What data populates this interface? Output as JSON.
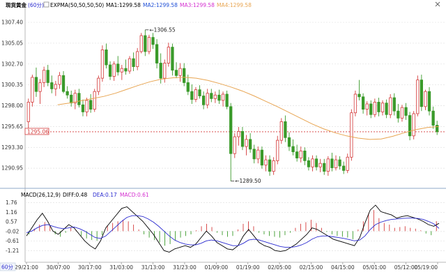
{
  "header": {
    "title": "现货黄金",
    "period": "(60分)",
    "ind_main": "EXPMA(50,50,50,50)",
    "ma1": "MA1:1299.58",
    "ma2": "MA2:1299.58",
    "ma3": "MA3:1299.58",
    "ma4": "MA4:1299.58",
    "colors": {
      "ma1": "#000000",
      "ma2": "#1f4fd6",
      "ma3": "#d42fd0",
      "ma4": "#e8a552"
    }
  },
  "toolbar": {
    "close_icon": "close-icon"
  },
  "macd": {
    "label": "MACD(26,12,9)",
    "diff": "DIFF:0.48",
    "dea": "DEA:0.17",
    "macd": "MACD:0.61",
    "colors": {
      "diff": "#000000",
      "dea": "#2a2ad0",
      "macd": "#d42fd0"
    }
  },
  "footer": {
    "period_button": "60分"
  },
  "current_price": "1295.06",
  "chart_data": [
    {
      "type": "candlestick",
      "title": "",
      "yticks": [
        "1307.40",
        "1305.05",
        "1302.70",
        "1300.35",
        "1298.00",
        "1295.65",
        "1293.30",
        "1290.95"
      ],
      "ylim": [
        1289.0,
        1308.5
      ],
      "xticks": [
        "29/21:00",
        "30/07:00",
        "30/17:00",
        "31/03:00",
        "31/13:00",
        "31/23:00",
        "01/09:00",
        "01/19:00",
        "02/05:00",
        "02/15:00",
        "04/15:00",
        "05/01:00",
        "05/12:00",
        "05/19:00"
      ],
      "annotations": [
        {
          "text": "1306.55"
        },
        {
          "text": "1289.50"
        }
      ],
      "up_color": "#d43a3a",
      "down_color": "#3a9a2a",
      "expma_color": "#e8a552",
      "ohlc": [
        [
          1296.2,
          1298.8,
          1295.0,
          1298.4
        ],
        [
          1298.4,
          1301.5,
          1297.9,
          1301.2
        ],
        [
          1301.2,
          1302.3,
          1299.0,
          1299.6
        ],
        [
          1299.6,
          1301.0,
          1298.2,
          1300.6
        ],
        [
          1300.6,
          1302.4,
          1300.1,
          1302.0
        ],
        [
          1302.0,
          1302.6,
          1300.2,
          1300.6
        ],
        [
          1300.6,
          1301.4,
          1299.4,
          1299.9
        ],
        [
          1299.9,
          1300.8,
          1299.1,
          1300.4
        ],
        [
          1300.4,
          1301.8,
          1299.9,
          1301.4
        ],
        [
          1301.4,
          1301.9,
          1299.4,
          1299.6
        ],
        [
          1299.6,
          1300.2,
          1298.8,
          1299.2
        ],
        [
          1299.2,
          1299.7,
          1297.9,
          1298.3
        ],
        [
          1298.3,
          1299.8,
          1297.6,
          1299.4
        ],
        [
          1299.4,
          1299.9,
          1297.8,
          1298.1
        ],
        [
          1298.1,
          1298.7,
          1296.8,
          1297.3
        ],
        [
          1297.3,
          1298.9,
          1296.8,
          1298.6
        ],
        [
          1298.6,
          1299.3,
          1297.2,
          1297.6
        ],
        [
          1297.6,
          1299.9,
          1297.3,
          1299.6
        ],
        [
          1299.6,
          1301.4,
          1299.2,
          1301.1
        ],
        [
          1301.1,
          1304.8,
          1300.7,
          1304.3
        ],
        [
          1304.3,
          1305.0,
          1302.2,
          1302.6
        ],
        [
          1302.6,
          1303.0,
          1300.9,
          1301.3
        ],
        [
          1301.3,
          1303.0,
          1300.8,
          1302.7
        ],
        [
          1302.7,
          1303.6,
          1301.4,
          1301.8
        ],
        [
          1301.8,
          1302.6,
          1300.9,
          1302.2
        ],
        [
          1302.2,
          1303.2,
          1301.5,
          1301.9
        ],
        [
          1301.9,
          1303.6,
          1301.6,
          1303.3
        ],
        [
          1303.3,
          1304.0,
          1301.9,
          1302.4
        ],
        [
          1302.4,
          1304.5,
          1302.0,
          1304.1
        ],
        [
          1304.1,
          1306.2,
          1303.9,
          1305.9
        ],
        [
          1305.9,
          1306.55,
          1303.6,
          1304.1
        ],
        [
          1304.1,
          1306.0,
          1303.8,
          1305.7
        ],
        [
          1305.7,
          1306.2,
          1304.4,
          1304.9
        ],
        [
          1304.9,
          1305.5,
          1302.2,
          1302.8
        ],
        [
          1302.8,
          1303.9,
          1300.5,
          1301.1
        ],
        [
          1301.1,
          1303.2,
          1300.6,
          1302.8
        ],
        [
          1302.8,
          1305.1,
          1302.4,
          1304.6
        ],
        [
          1304.6,
          1305.0,
          1301.4,
          1302.0
        ],
        [
          1302.0,
          1302.9,
          1301.1,
          1301.4
        ],
        [
          1301.4,
          1302.8,
          1300.7,
          1302.2
        ],
        [
          1302.2,
          1302.8,
          1300.2,
          1300.6
        ],
        [
          1300.6,
          1301.5,
          1299.2,
          1299.6
        ],
        [
          1299.6,
          1300.4,
          1298.2,
          1298.7
        ],
        [
          1298.7,
          1300.1,
          1298.4,
          1299.8
        ],
        [
          1299.8,
          1300.3,
          1298.8,
          1299.1
        ],
        [
          1299.1,
          1299.6,
          1297.6,
          1298.1
        ],
        [
          1298.1,
          1299.9,
          1297.7,
          1299.4
        ],
        [
          1299.4,
          1299.9,
          1298.4,
          1298.8
        ],
        [
          1298.8,
          1299.6,
          1298.3,
          1299.2
        ],
        [
          1299.2,
          1299.8,
          1298.2,
          1298.6
        ],
        [
          1298.6,
          1299.6,
          1297.9,
          1299.3
        ],
        [
          1299.3,
          1299.7,
          1297.6,
          1297.9
        ],
        [
          1297.9,
          1298.3,
          1289.5,
          1292.6
        ],
        [
          1292.6,
          1294.9,
          1292.1,
          1294.5
        ],
        [
          1294.5,
          1295.6,
          1293.5,
          1295.1
        ],
        [
          1295.1,
          1295.6,
          1293.0,
          1293.4
        ],
        [
          1293.4,
          1294.7,
          1292.4,
          1294.2
        ],
        [
          1294.2,
          1294.9,
          1292.7,
          1293.1
        ],
        [
          1293.1,
          1293.6,
          1291.5,
          1292.0
        ],
        [
          1292.0,
          1293.4,
          1291.5,
          1293.0
        ],
        [
          1293.0,
          1293.4,
          1290.9,
          1291.3
        ],
        [
          1291.3,
          1292.4,
          1290.6,
          1291.9
        ],
        [
          1291.9,
          1292.4,
          1290.1,
          1290.6
        ],
        [
          1290.6,
          1292.2,
          1290.2,
          1291.8
        ],
        [
          1291.8,
          1294.6,
          1291.4,
          1294.1
        ],
        [
          1294.1,
          1296.6,
          1293.7,
          1296.2
        ],
        [
          1296.2,
          1296.9,
          1293.9,
          1294.4
        ],
        [
          1294.4,
          1295.0,
          1292.9,
          1293.4
        ],
        [
          1293.4,
          1294.2,
          1292.4,
          1292.8
        ],
        [
          1292.8,
          1293.6,
          1291.7,
          1292.1
        ],
        [
          1292.1,
          1293.4,
          1291.6,
          1292.9
        ],
        [
          1292.9,
          1293.3,
          1291.3,
          1291.8
        ],
        [
          1291.8,
          1292.2,
          1290.7,
          1291.1
        ],
        [
          1291.1,
          1292.4,
          1290.6,
          1292.0
        ],
        [
          1292.0,
          1292.4,
          1290.7,
          1291.1
        ],
        [
          1291.1,
          1292.0,
          1290.5,
          1291.5
        ],
        [
          1291.5,
          1292.0,
          1290.2,
          1290.6
        ],
        [
          1290.6,
          1292.3,
          1290.1,
          1292.0
        ],
        [
          1292.0,
          1292.7,
          1290.6,
          1291.0
        ],
        [
          1291.0,
          1292.4,
          1290.7,
          1291.9
        ],
        [
          1291.9,
          1292.3,
          1290.8,
          1291.2
        ],
        [
          1291.2,
          1291.7,
          1290.3,
          1290.7
        ],
        [
          1290.7,
          1292.6,
          1290.4,
          1292.2
        ],
        [
          1292.2,
          1297.6,
          1291.8,
          1297.2
        ],
        [
          1297.2,
          1299.7,
          1296.8,
          1299.3
        ],
        [
          1299.3,
          1300.9,
          1298.6,
          1299.0
        ],
        [
          1299.0,
          1299.4,
          1297.1,
          1297.6
        ],
        [
          1297.6,
          1298.5,
          1296.9,
          1298.2
        ],
        [
          1298.2,
          1298.6,
          1296.6,
          1297.0
        ],
        [
          1297.0,
          1298.8,
          1296.7,
          1298.4
        ],
        [
          1298.4,
          1298.9,
          1296.8,
          1297.3
        ],
        [
          1297.3,
          1298.6,
          1296.9,
          1298.3
        ],
        [
          1298.3,
          1298.7,
          1296.6,
          1297.0
        ],
        [
          1297.0,
          1299.3,
          1296.6,
          1298.9
        ],
        [
          1298.9,
          1299.4,
          1296.9,
          1297.4
        ],
        [
          1297.4,
          1298.2,
          1296.1,
          1296.6
        ],
        [
          1296.6,
          1298.1,
          1296.2,
          1297.8
        ],
        [
          1297.8,
          1298.3,
          1296.4,
          1296.9
        ],
        [
          1296.9,
          1297.3,
          1294.1,
          1294.6
        ],
        [
          1294.6,
          1297.4,
          1294.2,
          1297.1
        ],
        [
          1297.1,
          1301.4,
          1296.8,
          1300.9
        ],
        [
          1300.9,
          1301.5,
          1297.4,
          1297.9
        ],
        [
          1297.9,
          1299.8,
          1297.5,
          1299.6
        ],
        [
          1299.6,
          1300.1,
          1296.9,
          1297.4
        ],
        [
          1297.4,
          1297.9,
          1295.4,
          1295.8
        ],
        [
          1295.8,
          1296.3,
          1294.7,
          1295.06
        ]
      ],
      "expma": [
        1298.1,
        1298.3,
        1298.55,
        1298.8,
        1299.05,
        1299.4,
        1299.85,
        1300.3,
        1300.7,
        1301.0,
        1301.15,
        1301.2,
        1301.1,
        1300.85,
        1300.5,
        1300.1,
        1299.65,
        1299.1,
        1298.5,
        1297.9,
        1297.25,
        1296.6,
        1295.95,
        1295.4,
        1294.95,
        1294.6,
        1294.35,
        1294.2,
        1294.25,
        1294.55,
        1294.95,
        1295.3,
        1295.55,
        1295.65
      ]
    },
    {
      "type": "macd",
      "title": "",
      "yticks": [
        "1.76",
        "1.16",
        "0.57",
        "-0.02",
        "-0.61",
        "-1.21"
      ],
      "ylim": [
        -1.75,
        1.95
      ],
      "diff": [
        -0.3,
        0.2,
        0.7,
        1.1,
        0.6,
        0.0,
        -0.2,
        0.1,
        0.4,
        0.2,
        -0.2,
        -0.6,
        -0.9,
        -1.1,
        -0.6,
        0.2,
        0.6,
        1.0,
        1.4,
        1.5,
        1.2,
        0.9,
        0.6,
        0.2,
        -0.2,
        -0.7,
        -1.2,
        -1.3,
        -1.1,
        -1.0,
        -0.9,
        -1.0,
        -0.8,
        -0.4,
        0.0,
        -0.3,
        -0.7,
        -0.9,
        -1.1,
        -1.15,
        -0.9,
        -0.3,
        0.1,
        -0.3,
        -0.7,
        -0.9,
        -1.0,
        -1.2,
        -1.25,
        -1.2,
        -1.0,
        -0.8,
        -0.5,
        -0.2,
        0.2,
        0.1,
        -0.1,
        -0.3,
        -0.5,
        -0.6,
        -0.7,
        -0.8,
        -0.9,
        -0.4,
        0.5,
        1.3,
        1.6,
        1.2,
        1.1,
        1.0,
        0.8,
        0.9,
        0.95,
        0.85,
        0.75,
        0.6,
        0.4,
        0.3,
        0.48
      ],
      "dea": [
        -0.1,
        0.0,
        0.2,
        0.35,
        0.4,
        0.3,
        0.2,
        0.15,
        0.2,
        0.25,
        0.15,
        0.0,
        -0.2,
        -0.4,
        -0.45,
        -0.3,
        0.0,
        0.3,
        0.6,
        0.85,
        0.95,
        0.95,
        0.9,
        0.75,
        0.55,
        0.3,
        0.0,
        -0.3,
        -0.55,
        -0.7,
        -0.8,
        -0.85,
        -0.85,
        -0.75,
        -0.6,
        -0.55,
        -0.6,
        -0.7,
        -0.8,
        -0.9,
        -0.9,
        -0.75,
        -0.55,
        -0.5,
        -0.55,
        -0.65,
        -0.75,
        -0.85,
        -0.95,
        -1.0,
        -1.0,
        -0.95,
        -0.85,
        -0.7,
        -0.5,
        -0.35,
        -0.3,
        -0.3,
        -0.35,
        -0.4,
        -0.45,
        -0.52,
        -0.6,
        -0.55,
        -0.3,
        0.1,
        0.4,
        0.55,
        0.65,
        0.72,
        0.75,
        0.78,
        0.8,
        0.8,
        0.78,
        0.72,
        0.6,
        0.45,
        0.17
      ],
      "hist": [
        -0.2,
        0.15,
        0.4,
        0.55,
        0.3,
        -0.2,
        -0.35,
        -0.1,
        0.2,
        0.05,
        -0.3,
        -0.45,
        -0.55,
        -0.6,
        -0.25,
        0.35,
        0.5,
        0.6,
        0.7,
        0.6,
        0.4,
        0.1,
        -0.2,
        -0.4,
        -0.55,
        -0.7,
        -0.9,
        -0.8,
        -0.6,
        -0.4,
        -0.3,
        -0.2,
        0.05,
        0.3,
        0.45,
        0.25,
        -0.1,
        -0.25,
        -0.35,
        -0.3,
        0.1,
        0.45,
        0.6,
        0.3,
        -0.1,
        -0.2,
        -0.3,
        -0.35,
        -0.4,
        -0.25,
        -0.1,
        0.2,
        0.45,
        0.55,
        0.7,
        0.5,
        0.2,
        -0.05,
        -0.2,
        -0.3,
        -0.35,
        -0.4,
        -0.5,
        0.1,
        0.6,
        1.1,
        1.3,
        0.8,
        0.5,
        0.4,
        0.2,
        0.25,
        0.3,
        0.2,
        0.15,
        0.05,
        -0.15,
        -0.25,
        0.61
      ]
    }
  ]
}
